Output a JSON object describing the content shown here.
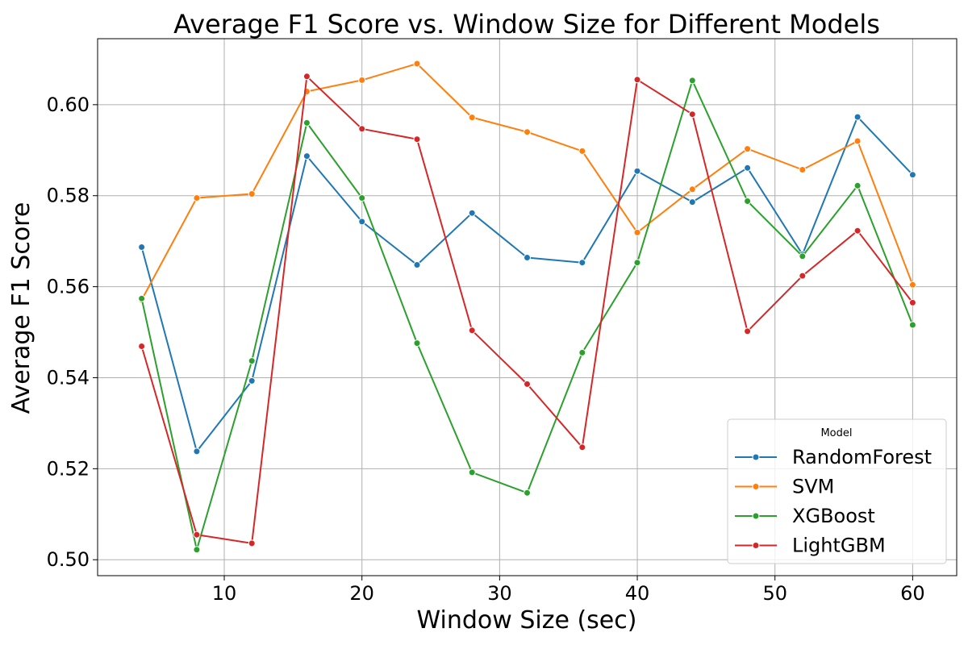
{
  "chart_data": {
    "type": "line",
    "title": "Average F1 Score vs. Window Size for Different Models",
    "xlabel": "Window Size (sec)",
    "ylabel": "Average F1 Score",
    "x": [
      4,
      8,
      12,
      16,
      20,
      24,
      28,
      32,
      36,
      40,
      44,
      48,
      52,
      56,
      60
    ],
    "xlim": [
      0.8,
      63.2
    ],
    "ylim": [
      0.4965,
      0.6145
    ],
    "xticks": [
      10,
      20,
      30,
      40,
      50,
      60
    ],
    "xtick_labels": [
      "10",
      "20",
      "30",
      "40",
      "50",
      "60"
    ],
    "yticks": [
      0.5,
      0.52,
      0.54,
      0.56,
      0.58,
      0.6
    ],
    "ytick_labels": [
      "0.50",
      "0.52",
      "0.54",
      "0.56",
      "0.58",
      "0.60"
    ],
    "grid": true,
    "legend": {
      "title": "Model",
      "position": "lower-right"
    },
    "series": [
      {
        "name": "RandomForest",
        "color": "#1f77b4",
        "values": [
          0.5687,
          0.5238,
          0.5393,
          0.5887,
          0.5743,
          0.5648,
          0.5762,
          0.5664,
          0.5653,
          0.5854,
          0.5786,
          0.5861,
          0.5671,
          0.5973,
          0.5846
        ]
      },
      {
        "name": "SVM",
        "color": "#ff7f0e",
        "values": [
          0.5571,
          0.5795,
          0.5804,
          0.6029,
          0.6054,
          0.609,
          0.5972,
          0.594,
          0.5898,
          0.5719,
          0.5814,
          0.5903,
          0.5857,
          0.592,
          0.5604
        ]
      },
      {
        "name": "XGBoost",
        "color": "#2ca02c",
        "values": [
          0.5574,
          0.5022,
          0.5437,
          0.596,
          0.5795,
          0.5476,
          0.5192,
          0.5147,
          0.5455,
          0.5653,
          0.6053,
          0.5788,
          0.5667,
          0.5822,
          0.5516
        ]
      },
      {
        "name": "LightGBM",
        "color": "#d62728",
        "values": [
          0.5469,
          0.5055,
          0.5036,
          0.6062,
          0.5947,
          0.5924,
          0.5504,
          0.5386,
          0.5247,
          0.6055,
          0.5979,
          0.5502,
          0.5624,
          0.5723,
          0.5565
        ]
      }
    ]
  }
}
